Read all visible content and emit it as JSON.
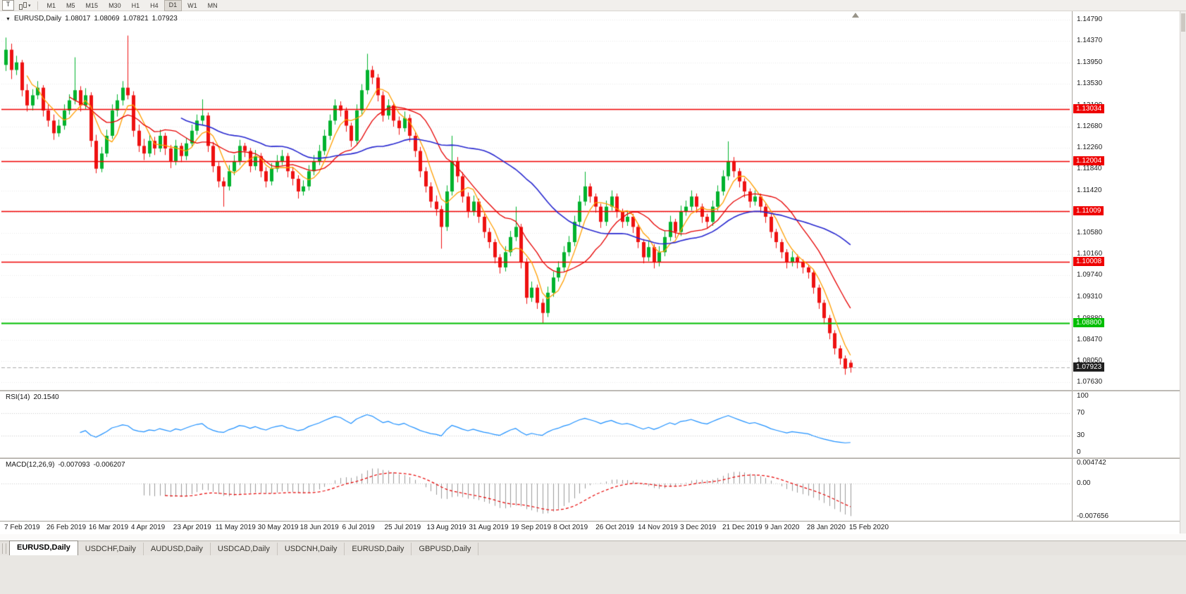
{
  "toolbar": {
    "t_button": "T",
    "timeframes": [
      "M1",
      "M5",
      "M15",
      "M30",
      "H1",
      "H4",
      "D1",
      "W1",
      "MN"
    ],
    "active_timeframe": "D1"
  },
  "tabs": [
    {
      "label": "EURUSD,Daily",
      "active": true
    },
    {
      "label": "USDCHF,Daily",
      "active": false
    },
    {
      "label": "AUDUSD,Daily",
      "active": false
    },
    {
      "label": "USDCAD,Daily",
      "active": false
    },
    {
      "label": "USDCNH,Daily",
      "active": false
    },
    {
      "label": "EURUSD,Daily",
      "active": false
    },
    {
      "label": "GBPUSD,Daily",
      "active": false
    }
  ],
  "chart_data": {
    "type": "candlestick",
    "symbol": "EURUSD",
    "timeframe": "Daily",
    "symbol_label": "EURUSD,Daily",
    "current": {
      "open": "1.08017",
      "high": "1.08069",
      "low": "1.07821",
      "close": "1.07923",
      "price": 1.07923
    },
    "current_price_tag": {
      "label": "1.07923",
      "bg": "#1f1f1f"
    },
    "price_axis_ticks": [
      "1.14790",
      "1.14370",
      "1.13950",
      "1.13530",
      "1.13100",
      "1.12680",
      "1.12260",
      "1.11840",
      "1.11420",
      "1.11000",
      "1.10580",
      "1.10160",
      "1.09740",
      "1.09310",
      "1.08880",
      "1.08470",
      "1.08050",
      "1.07630"
    ],
    "date_labels": [
      "7 Feb 2019",
      "26 Feb 2019",
      "16 Mar 2019",
      "4 Apr 2019",
      "23 Apr 2019",
      "11 May 2019",
      "30 May 2019",
      "18 Jun 2019",
      "6 Jul 2019",
      "25 Jul 2019",
      "13 Aug 2019",
      "31 Aug 2019",
      "19 Sep 2019",
      "8 Oct 2019",
      "26 Oct 2019",
      "14 Nov 2019",
      "3 Dec 2019",
      "21 Dec 2019",
      "9 Jan 2020",
      "28 Jan 2020",
      "15 Feb 2020"
    ],
    "hlines": [
      {
        "price": 1.13034,
        "label": "1.13034",
        "color": "#EE0000",
        "width": 1.6
      },
      {
        "price": 1.12004,
        "label": "1.12004",
        "color": "#EE0000",
        "width": 1.6
      },
      {
        "price": 1.11009,
        "label": "1.11009",
        "color": "#EE0000",
        "width": 1.6
      },
      {
        "price": 1.10008,
        "label": "1.10008",
        "color": "#EE0000",
        "width": 1.6
      },
      {
        "price": 1.088,
        "label": "1.08800",
        "color": "#00BE00",
        "width": 2.2
      }
    ],
    "moving_averages": [
      {
        "period": 5,
        "color": "#FF9E00"
      },
      {
        "period": 13,
        "color": "#E60000"
      },
      {
        "period": 34,
        "color": "#2727CF"
      }
    ],
    "rsi": {
      "name": "RSI(14)",
      "period": 14,
      "value": "20.1540",
      "axis_labels": [
        "100",
        "70",
        "30",
        "0"
      ],
      "level_lines": [
        70,
        30
      ],
      "color": "#1E90FF"
    },
    "macd": {
      "name": "MACD(12,26,9)",
      "fast": 12,
      "slow": 26,
      "signal": 9,
      "value_main": "-0.007093",
      "value_signal": "-0.006207",
      "axis_labels": [
        "0.004742",
        "0.00",
        "-0.007656"
      ],
      "hist_color": "#9a9a9a",
      "signal_color": "#E60000"
    },
    "colors": {
      "up": "#00B22D",
      "down": "#EE1111",
      "grid": "#E8E8E8",
      "bid_line": "#ABABAB"
    },
    "candles": [
      [
        1.139,
        1.1444,
        1.1378,
        1.142
      ],
      [
        1.142,
        1.1432,
        1.1362,
        1.138
      ],
      [
        1.138,
        1.1408,
        1.137,
        1.1395
      ],
      [
        1.1395,
        1.14,
        1.1328,
        1.134
      ],
      [
        1.134,
        1.1352,
        1.1298,
        1.131
      ],
      [
        1.131,
        1.1342,
        1.13,
        1.133
      ],
      [
        1.133,
        1.1358,
        1.1322,
        1.1345
      ],
      [
        1.1345,
        1.135,
        1.1288,
        1.13
      ],
      [
        1.13,
        1.1312,
        1.1268,
        1.128
      ],
      [
        1.128,
        1.1292,
        1.1242,
        1.1255
      ],
      [
        1.1255,
        1.1282,
        1.1248,
        1.127
      ],
      [
        1.127,
        1.1312,
        1.1262,
        1.13
      ],
      [
        1.13,
        1.1332,
        1.1292,
        1.132
      ],
      [
        1.132,
        1.1405,
        1.1312,
        1.134
      ],
      [
        1.134,
        1.1348,
        1.1298,
        1.131
      ],
      [
        1.131,
        1.1344,
        1.1302,
        1.133
      ],
      [
        1.133,
        1.1336,
        1.1228,
        1.124
      ],
      [
        1.124,
        1.1252,
        1.1176,
        1.1185
      ],
      [
        1.1185,
        1.1228,
        1.1178,
        1.1215
      ],
      [
        1.1215,
        1.1262,
        1.1208,
        1.125
      ],
      [
        1.125,
        1.1312,
        1.1244,
        1.13
      ],
      [
        1.13,
        1.1332,
        1.1288,
        1.132
      ],
      [
        1.132,
        1.1358,
        1.131,
        1.1345
      ],
      [
        1.1345,
        1.1448,
        1.1322,
        1.133
      ],
      [
        1.133,
        1.1338,
        1.1248,
        1.126
      ],
      [
        1.126,
        1.1272,
        1.1218,
        1.123
      ],
      [
        1.123,
        1.1244,
        1.1202,
        1.1215
      ],
      [
        1.1215,
        1.1252,
        1.1208,
        1.124
      ],
      [
        1.124,
        1.1248,
        1.1212,
        1.1225
      ],
      [
        1.1225,
        1.1262,
        1.1218,
        1.125
      ],
      [
        1.125,
        1.1256,
        1.1212,
        1.1225
      ],
      [
        1.1225,
        1.1232,
        1.1186,
        1.12
      ],
      [
        1.12,
        1.1242,
        1.1192,
        1.123
      ],
      [
        1.123,
        1.1236,
        1.1198,
        1.121
      ],
      [
        1.121,
        1.1246,
        1.1202,
        1.1235
      ],
      [
        1.1235,
        1.1272,
        1.1228,
        1.126
      ],
      [
        1.126,
        1.1292,
        1.1252,
        1.128
      ],
      [
        1.128,
        1.1322,
        1.1272,
        1.129
      ],
      [
        1.129,
        1.1296,
        1.1218,
        1.123
      ],
      [
        1.123,
        1.1238,
        1.1178,
        1.119
      ],
      [
        1.119,
        1.1198,
        1.1148,
        1.116
      ],
      [
        1.116,
        1.1168,
        1.111,
        1.115
      ],
      [
        1.115,
        1.1192,
        1.1142,
        1.118
      ],
      [
        1.118,
        1.1212,
        1.1172,
        1.12
      ],
      [
        1.12,
        1.1242,
        1.1192,
        1.123
      ],
      [
        1.123,
        1.1236,
        1.1208,
        1.122
      ],
      [
        1.122,
        1.1226,
        1.1178,
        1.119
      ],
      [
        1.119,
        1.1222,
        1.1182,
        1.121
      ],
      [
        1.121,
        1.1216,
        1.1168,
        1.118
      ],
      [
        1.118,
        1.1188,
        1.1148,
        1.116
      ],
      [
        1.116,
        1.1196,
        1.1152,
        1.1185
      ],
      [
        1.1185,
        1.1212,
        1.1178,
        1.12
      ],
      [
        1.12,
        1.1222,
        1.1192,
        1.121
      ],
      [
        1.121,
        1.1216,
        1.1168,
        1.118
      ],
      [
        1.118,
        1.1188,
        1.1152,
        1.1165
      ],
      [
        1.1165,
        1.1172,
        1.1126,
        1.114
      ],
      [
        1.114,
        1.1162,
        1.1132,
        1.115
      ],
      [
        1.115,
        1.1192,
        1.1142,
        1.118
      ],
      [
        1.118,
        1.1212,
        1.1172,
        1.12
      ],
      [
        1.12,
        1.1232,
        1.1192,
        1.122
      ],
      [
        1.122,
        1.1262,
        1.1212,
        1.125
      ],
      [
        1.125,
        1.1292,
        1.1242,
        1.128
      ],
      [
        1.128,
        1.1322,
        1.1272,
        1.131
      ],
      [
        1.131,
        1.1318,
        1.1288,
        1.13
      ],
      [
        1.13,
        1.1306,
        1.1258,
        1.127
      ],
      [
        1.127,
        1.1276,
        1.1228,
        1.124
      ],
      [
        1.124,
        1.1312,
        1.1234,
        1.13
      ],
      [
        1.13,
        1.1352,
        1.1292,
        1.134
      ],
      [
        1.134,
        1.1412,
        1.1332,
        1.138
      ],
      [
        1.138,
        1.1388,
        1.1352,
        1.1365
      ],
      [
        1.1365,
        1.1372,
        1.1318,
        1.133
      ],
      [
        1.133,
        1.1338,
        1.1278,
        1.129
      ],
      [
        1.129,
        1.1322,
        1.1282,
        1.131
      ],
      [
        1.131,
        1.1316,
        1.1268,
        1.128
      ],
      [
        1.128,
        1.1288,
        1.1252,
        1.1265
      ],
      [
        1.1265,
        1.1298,
        1.1258,
        1.1285
      ],
      [
        1.1285,
        1.1292,
        1.1238,
        1.125
      ],
      [
        1.125,
        1.1258,
        1.1208,
        1.122
      ],
      [
        1.122,
        1.1228,
        1.1168,
        1.118
      ],
      [
        1.118,
        1.1188,
        1.1138,
        1.115
      ],
      [
        1.115,
        1.1158,
        1.1108,
        1.112
      ],
      [
        1.112,
        1.1132,
        1.1092,
        1.1105
      ],
      [
        1.1105,
        1.1112,
        1.1027,
        1.107
      ],
      [
        1.107,
        1.1152,
        1.1062,
        1.114
      ],
      [
        1.114,
        1.125,
        1.1132,
        1.12
      ],
      [
        1.12,
        1.1208,
        1.1158,
        1.117
      ],
      [
        1.117,
        1.1178,
        1.1118,
        1.113
      ],
      [
        1.113,
        1.1138,
        1.1088,
        1.11
      ],
      [
        1.11,
        1.1132,
        1.1092,
        1.112
      ],
      [
        1.112,
        1.1126,
        1.1078,
        1.109
      ],
      [
        1.109,
        1.1096,
        1.1048,
        1.106
      ],
      [
        1.106,
        1.1068,
        1.1028,
        1.104
      ],
      [
        1.104,
        1.1046,
        1.0998,
        1.101
      ],
      [
        1.101,
        1.1016,
        1.0978,
        1.099
      ],
      [
        1.099,
        1.1032,
        1.0982,
        1.102
      ],
      [
        1.102,
        1.1062,
        1.1012,
        1.105
      ],
      [
        1.105,
        1.111,
        1.1042,
        1.107
      ],
      [
        1.107,
        1.1076,
        1.0988,
        1.1
      ],
      [
        1.1,
        1.1008,
        1.0918,
        1.093
      ],
      [
        1.093,
        1.0962,
        1.0922,
        1.095
      ],
      [
        1.095,
        1.0956,
        1.0908,
        1.092
      ],
      [
        1.092,
        1.0928,
        1.0879,
        1.09
      ],
      [
        1.09,
        1.0952,
        1.0892,
        1.094
      ],
      [
        1.094,
        1.0982,
        1.0932,
        1.097
      ],
      [
        1.097,
        1.1002,
        1.0962,
        1.099
      ],
      [
        1.099,
        1.1032,
        1.0982,
        1.102
      ],
      [
        1.102,
        1.1052,
        1.1012,
        1.104
      ],
      [
        1.104,
        1.1092,
        1.1032,
        1.108
      ],
      [
        1.108,
        1.1132,
        1.1072,
        1.112
      ],
      [
        1.112,
        1.1179,
        1.1112,
        1.115
      ],
      [
        1.115,
        1.1156,
        1.1118,
        1.113
      ],
      [
        1.113,
        1.1136,
        1.1098,
        1.111
      ],
      [
        1.111,
        1.1116,
        1.1068,
        1.108
      ],
      [
        1.108,
        1.1122,
        1.1072,
        1.111
      ],
      [
        1.111,
        1.1142,
        1.1102,
        1.113
      ],
      [
        1.113,
        1.1136,
        1.1088,
        1.11
      ],
      [
        1.11,
        1.1106,
        1.1068,
        1.108
      ],
      [
        1.108,
        1.1102,
        1.1072,
        1.109
      ],
      [
        1.109,
        1.1096,
        1.1058,
        1.107
      ],
      [
        1.107,
        1.1076,
        1.1028,
        1.104
      ],
      [
        1.104,
        1.1046,
        1.0998,
        1.101
      ],
      [
        1.101,
        1.1042,
        1.1002,
        1.103
      ],
      [
        1.103,
        1.1036,
        1.0988,
        1.1
      ],
      [
        1.1,
        1.1032,
        1.0992,
        1.102
      ],
      [
        1.102,
        1.1062,
        1.1012,
        1.105
      ],
      [
        1.105,
        1.1092,
        1.1042,
        1.108
      ],
      [
        1.108,
        1.1086,
        1.1048,
        1.106
      ],
      [
        1.106,
        1.1112,
        1.1052,
        1.11
      ],
      [
        1.11,
        1.1122,
        1.1092,
        1.111
      ],
      [
        1.111,
        1.1142,
        1.1102,
        1.113
      ],
      [
        1.113,
        1.1136,
        1.1098,
        1.111
      ],
      [
        1.111,
        1.1116,
        1.1078,
        1.109
      ],
      [
        1.109,
        1.1096,
        1.1068,
        1.108
      ],
      [
        1.108,
        1.1122,
        1.1072,
        1.111
      ],
      [
        1.111,
        1.1152,
        1.1102,
        1.114
      ],
      [
        1.114,
        1.1182,
        1.1132,
        1.117
      ],
      [
        1.117,
        1.1239,
        1.1162,
        1.12
      ],
      [
        1.12,
        1.1208,
        1.1168,
        1.118
      ],
      [
        1.118,
        1.1186,
        1.1148,
        1.116
      ],
      [
        1.116,
        1.1166,
        1.1128,
        1.114
      ],
      [
        1.114,
        1.1146,
        1.1108,
        1.112
      ],
      [
        1.112,
        1.1142,
        1.1112,
        1.113
      ],
      [
        1.113,
        1.1136,
        1.1098,
        1.111
      ],
      [
        1.111,
        1.1116,
        1.1078,
        1.109
      ],
      [
        1.109,
        1.1096,
        1.1048,
        1.106
      ],
      [
        1.106,
        1.1066,
        1.1028,
        1.104
      ],
      [
        1.104,
        1.1046,
        1.1008,
        1.102
      ],
      [
        1.102,
        1.1026,
        1.0988,
        1.1
      ],
      [
        1.1,
        1.1022,
        1.0992,
        1.101
      ],
      [
        1.101,
        1.1016,
        1.0988,
        1.1
      ],
      [
        1.1,
        1.1006,
        1.0978,
        1.099
      ],
      [
        1.099,
        1.0996,
        1.0968,
        1.098
      ],
      [
        1.098,
        1.0986,
        1.0938,
        1.095
      ],
      [
        1.095,
        1.0956,
        1.0908,
        1.092
      ],
      [
        1.092,
        1.0926,
        1.0878,
        1.089
      ],
      [
        1.089,
        1.0896,
        1.0848,
        1.086
      ],
      [
        1.086,
        1.0866,
        1.0818,
        1.083
      ],
      [
        1.083,
        1.0836,
        1.0798,
        1.081
      ],
      [
        1.081,
        1.0816,
        1.0778,
        1.079
      ],
      [
        1.08017,
        1.08069,
        1.07821,
        1.07923
      ]
    ]
  }
}
